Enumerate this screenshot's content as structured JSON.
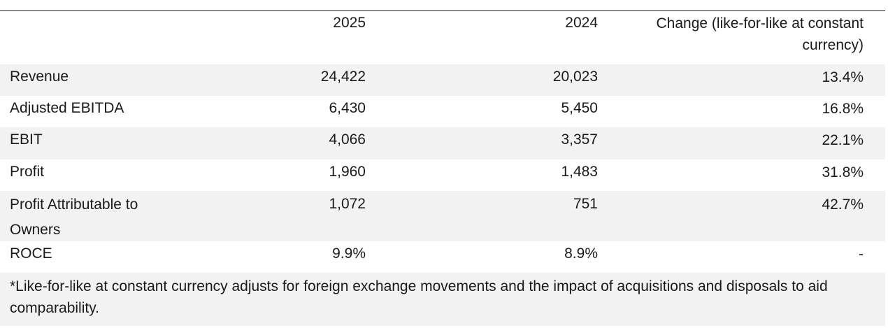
{
  "table": {
    "headers": [
      "",
      "2025",
      "2024",
      "Change (like-for-like at constant currency)"
    ],
    "rows": [
      {
        "label": "Revenue",
        "y2025": "24,422",
        "y2024": "20,023",
        "change": "13.4%"
      },
      {
        "label": "Adjusted EBITDA",
        "y2025": "6,430",
        "y2024": "5,450",
        "change": "16.8%"
      },
      {
        "label": "EBIT",
        "y2025": "4,066",
        "y2024": "3,357",
        "change": "22.1%"
      },
      {
        "label": "Profit",
        "y2025": "1,960",
        "y2024": "1,483",
        "change": "31.8%"
      },
      {
        "label": "Profit Attributable to Owners",
        "y2025": "1,072",
        "y2024": "751",
        "change": "42.7%"
      },
      {
        "label": "ROCE",
        "y2025": "9.9%",
        "y2024": "8.9%",
        "change": "-"
      }
    ],
    "footnote": "*Like-for-like at constant currency adjusts for foreign exchange movements and the impact of acquisitions and disposals to aid comparability."
  }
}
